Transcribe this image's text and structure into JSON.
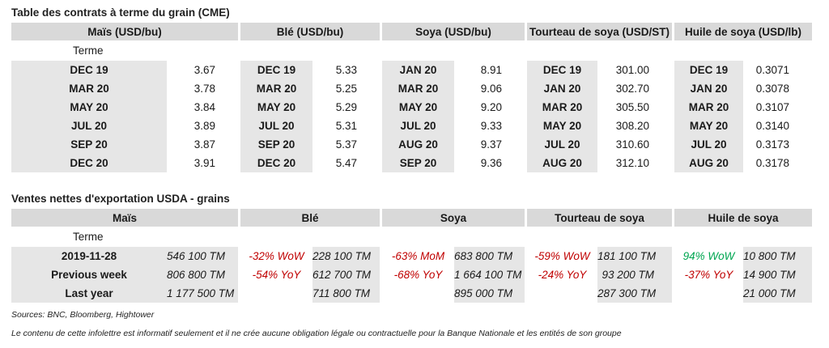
{
  "futures": {
    "title": "Table des contrats à terme du grain (CME)",
    "headers": [
      "Maïs (USD/bu)",
      "Blé (USD/bu)",
      "Soya (USD/bu)",
      "Tourteau de soya (USD/ST)",
      "Huile de soya (USD/lb)"
    ],
    "terme_label": "Terme",
    "rows": [
      [
        "DEC 19",
        "3.67",
        "DEC 19",
        "5.33",
        "JAN 20",
        "8.91",
        "DEC 19",
        "301.00",
        "DEC 19",
        "0.3071"
      ],
      [
        "MAR 20",
        "3.78",
        "MAR 20",
        "5.25",
        "MAR 20",
        "9.06",
        "JAN 20",
        "302.70",
        "JAN 20",
        "0.3078"
      ],
      [
        "MAY 20",
        "3.84",
        "MAY 20",
        "5.29",
        "MAY 20",
        "9.20",
        "MAR 20",
        "305.50",
        "MAR 20",
        "0.3107"
      ],
      [
        "JUL 20",
        "3.89",
        "JUL 20",
        "5.31",
        "JUL 20",
        "9.33",
        "MAY 20",
        "308.20",
        "MAY 20",
        "0.3140"
      ],
      [
        "SEP 20",
        "3.87",
        "SEP 20",
        "5.37",
        "AUG 20",
        "9.37",
        "JUL 20",
        "310.60",
        "JUL 20",
        "0.3173"
      ],
      [
        "DEC 20",
        "3.91",
        "DEC 20",
        "5.47",
        "SEP 20",
        "9.36",
        "AUG 20",
        "312.10",
        "AUG 20",
        "0.3178"
      ]
    ]
  },
  "exports": {
    "title": "Ventes nettes d'exportation USDA - grains",
    "headers": [
      "Maïs",
      "Blé",
      "Soya",
      "Tourteau de soya",
      "Huile de soya"
    ],
    "terme_label": "Terme",
    "rows": [
      {
        "label": "2019-11-28",
        "cells": [
          {
            "text": "546 100 TM"
          },
          {
            "text": "-32% WoW",
            "tone": "neg"
          },
          {
            "text": "228 100 TM"
          },
          {
            "text": "-63% MoM",
            "tone": "neg"
          },
          {
            "text": "683 800 TM"
          },
          {
            "text": "-59% WoW",
            "tone": "neg"
          },
          {
            "text": "181 100 TM"
          },
          {
            "text": "94% WoW",
            "tone": "pos"
          },
          {
            "text": "10 800 TM"
          }
        ]
      },
      {
        "label": "Previous week",
        "cells": [
          {
            "text": "806 800 TM"
          },
          {
            "text": "-54% YoY",
            "tone": "neg"
          },
          {
            "text": "612 700 TM"
          },
          {
            "text": "-68% YoY",
            "tone": "neg"
          },
          {
            "text": "1 664 100 TM"
          },
          {
            "text": "-24% YoY",
            "tone": "neg"
          },
          {
            "text": "93 200 TM"
          },
          {
            "text": "-37% YoY",
            "tone": "neg"
          },
          {
            "text": "14 900 TM"
          }
        ]
      },
      {
        "label": "Last year",
        "cells": [
          {
            "text": "1 177 500 TM"
          },
          {
            "text": ""
          },
          {
            "text": "711 800 TM"
          },
          {
            "text": ""
          },
          {
            "text": "895 000 TM"
          },
          {
            "text": ""
          },
          {
            "text": "287 300 TM"
          },
          {
            "text": ""
          },
          {
            "text": "21 000 TM"
          }
        ]
      }
    ]
  },
  "footer": {
    "sources": "Sources: BNC, Bloomberg, Hightower",
    "disclaimer": "Le contenu de cette infolettre est informatif seulement et il ne crée aucune obligation légale ou contractuelle pour la Banque Nationale et les entités de son groupe"
  }
}
